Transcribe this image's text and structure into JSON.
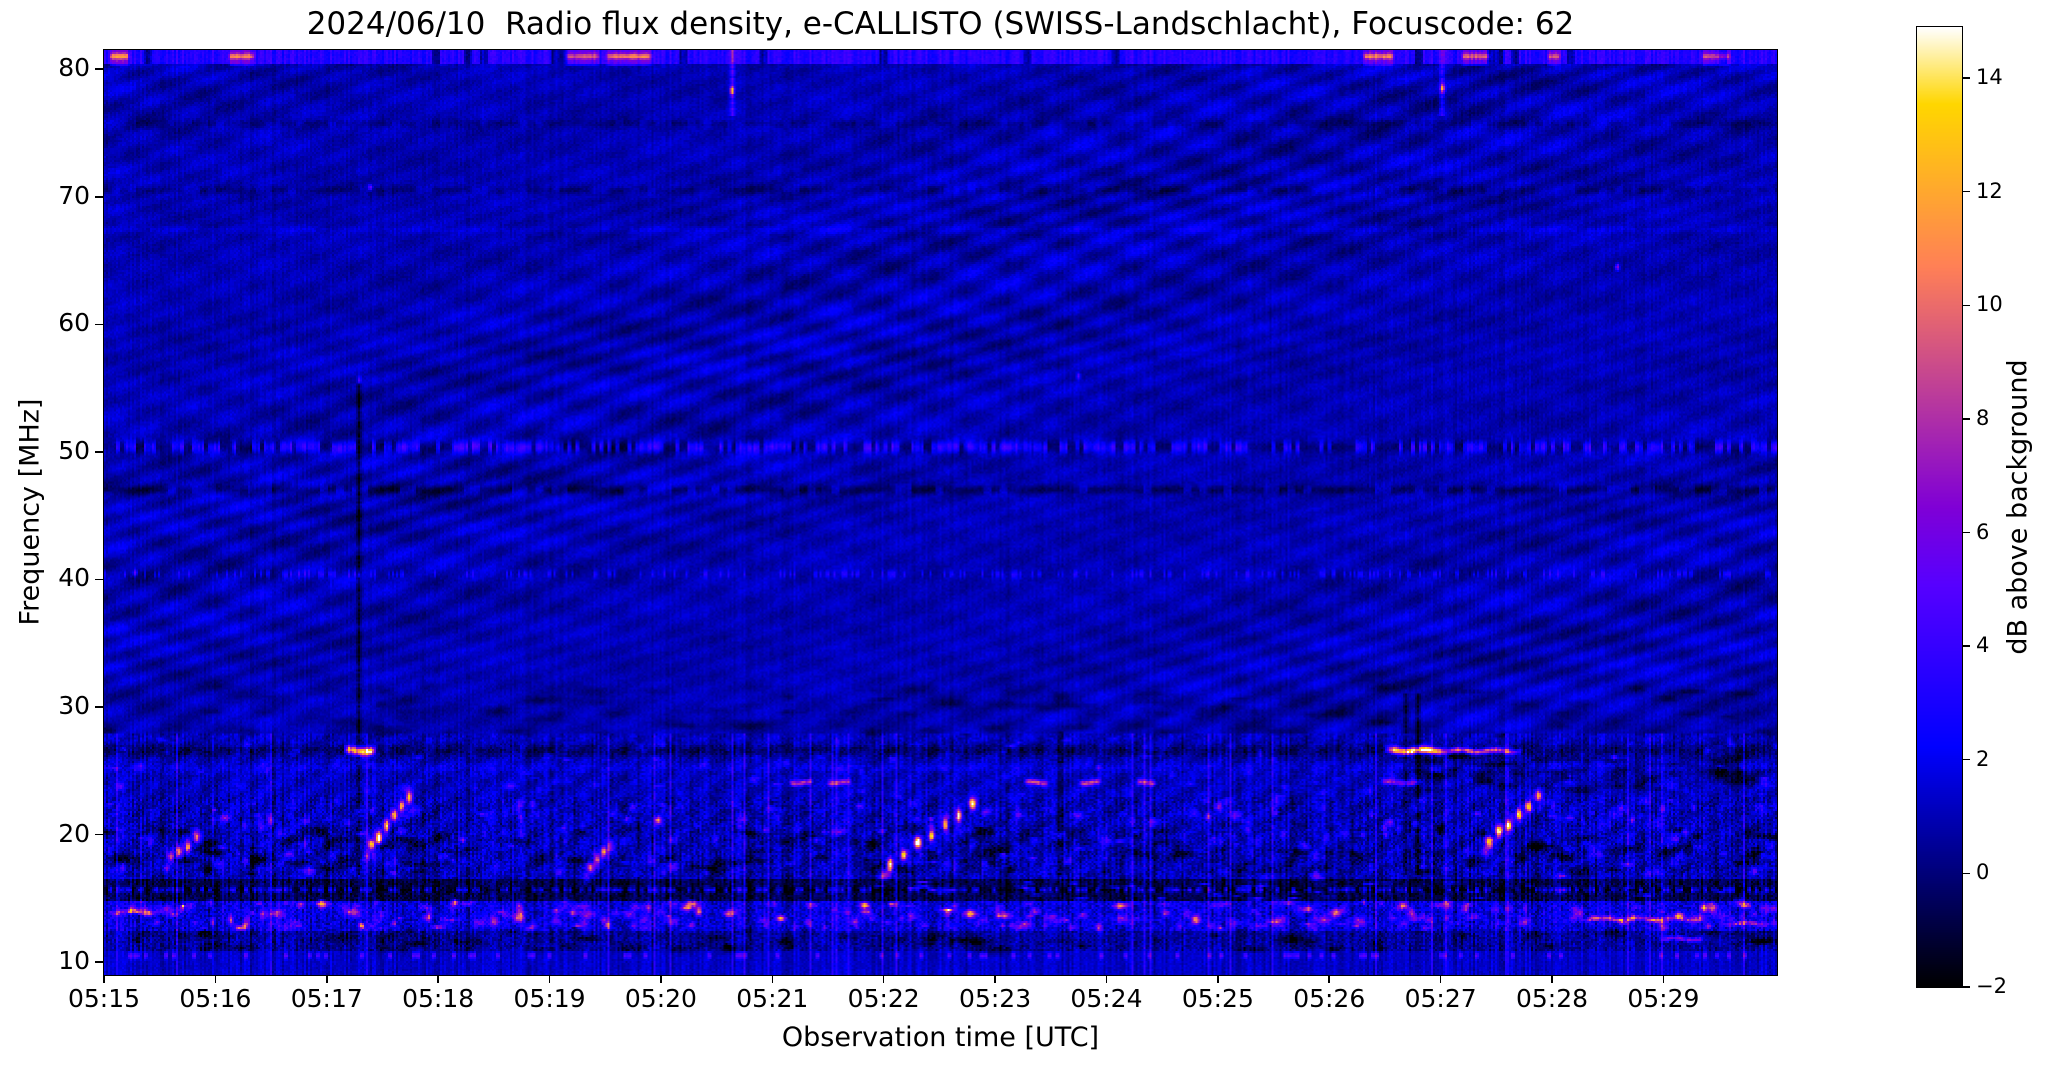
{
  "figure": {
    "background": "#ffffff",
    "text_color": "#000000"
  },
  "chart_data": {
    "type": "heatmap",
    "title": "2024/06/10  Radio flux density, e-CALLISTO (SWISS-Landschlacht), Focuscode: 62",
    "xlabel": "Observation time [UTC]",
    "ylabel": "Frequency [MHz]",
    "colorbar_label": "dB above background",
    "colormap": "gnuplot2",
    "x_start": "05:15",
    "x_end": "05:30",
    "x_span_minutes": 15.02,
    "x_ticks": [
      "05:15",
      "05:16",
      "05:17",
      "05:18",
      "05:19",
      "05:20",
      "05:21",
      "05:22",
      "05:23",
      "05:24",
      "05:25",
      "05:26",
      "05:27",
      "05:28",
      "05:29"
    ],
    "y_range_mhz": [
      9.0,
      81.5
    ],
    "y_ticks_mhz": [
      10,
      20,
      30,
      40,
      50,
      60,
      70,
      80
    ],
    "value_range_db": [
      -2,
      14.9
    ],
    "colorbar_ticks_db": [
      -2,
      0,
      2,
      4,
      6,
      8,
      10,
      12,
      14
    ],
    "background_level_db": 1.0,
    "bands": [
      {
        "f": [
          28.0,
          81.5
        ],
        "base": 0.95,
        "noise": 0.5,
        "stria": 0.32,
        "ripple": 1,
        "diag": 0
      },
      {
        "f": [
          23.0,
          28.0
        ],
        "base": 1.15,
        "noise": 1.0,
        "stria": 0.85,
        "ripple": 0,
        "diag": 1
      },
      {
        "f": [
          16.6,
          23.0
        ],
        "base": 1.05,
        "noise": 1.5,
        "stria": 1.15,
        "ripple": 0,
        "diag": 1
      },
      {
        "f": [
          14.9,
          16.6
        ],
        "base": -0.7,
        "noise": 1.1,
        "stria": 1.3,
        "ripple": 0,
        "diag": 0
      },
      {
        "f": [
          12.6,
          14.9
        ],
        "base": 1.7,
        "noise": 1.7,
        "stria": 1.25,
        "ripple": 0,
        "diag": 0
      },
      {
        "f": [
          11.0,
          12.6
        ],
        "base": 0.7,
        "noise": 1.3,
        "stria": 1.1,
        "ripple": 0,
        "diag": 0
      },
      {
        "f": [
          9.0,
          11.0
        ],
        "base": 1.35,
        "noise": 0.55,
        "stria": 0.8,
        "ripple": 0,
        "diag": 0
      }
    ],
    "rows": [
      {
        "f": 50.45,
        "hw": 0.45,
        "type": "dashed-bright",
        "db": 2.8
      },
      {
        "f": 47.1,
        "hw": 0.35,
        "type": "dashed-dark",
        "db": -1.3
      },
      {
        "f": 70.6,
        "hw": 0.3,
        "type": "dashed-dark",
        "db": -0.8
      },
      {
        "f": 75.8,
        "hw": 0.3,
        "type": "dashed-dark",
        "db": -0.7
      },
      {
        "f": 67.5,
        "hw": 0.25,
        "type": "faint-bright",
        "db": 0.7
      },
      {
        "f": 40.5,
        "hw": 0.3,
        "type": "speckle-bright",
        "db": 0.9
      },
      {
        "f": 26.65,
        "hw": 0.5,
        "type": "dark-lane",
        "db": -1.6
      },
      {
        "f": 25.3,
        "hw": 0.3,
        "type": "faint-bright",
        "db": 0.8
      },
      {
        "f": 15.75,
        "hw": 0.2,
        "type": "dashed-bright",
        "db": 3.2
      },
      {
        "f": 10.6,
        "hw": 0.25,
        "type": "dotted-bright",
        "db": 3.5
      }
    ],
    "top_band": {
      "f": [
        80.55,
        81.5
      ],
      "base_db": 3.4,
      "segments": [
        [
          0.04,
          0.22,
          6.5
        ],
        [
          1.1,
          1.35,
          6.0
        ],
        [
          4.13,
          4.45,
          5.0
        ],
        [
          4.49,
          4.92,
          6.3
        ],
        [
          11.29,
          11.58,
          6.3
        ],
        [
          12.17,
          12.44,
          5.2
        ],
        [
          12.95,
          13.07,
          4.6
        ],
        [
          14.33,
          14.6,
          4.8
        ]
      ]
    },
    "bright_streaks_27mhz": [
      {
        "t": [
          2.15,
          2.43
        ],
        "f": [
          26.3,
          27.0
        ],
        "db": 13.5
      },
      {
        "t": [
          11.5,
          12.05
        ],
        "f": [
          26.35,
          26.95
        ],
        "db": 14.5
      },
      {
        "t": [
          12.0,
          12.72
        ],
        "f": [
          26.4,
          26.85
        ],
        "db": 9.0
      }
    ],
    "magenta_dashes_24mhz": {
      "f": 24.15,
      "hw": 0.22,
      "segments": [
        [
          6.14,
          6.36,
          7.2
        ],
        [
          6.48,
          6.7,
          7.2
        ],
        [
          8.25,
          8.47,
          7.6
        ],
        [
          8.74,
          8.94,
          7.4
        ],
        [
          9.26,
          9.44,
          6.6
        ],
        [
          11.45,
          11.82,
          6.0
        ]
      ]
    },
    "type_iii_bursts": [
      {
        "t0": 0.59,
        "f0": 18.2,
        "t1": 0.82,
        "f1": 19.8,
        "blobs": 4,
        "db": 8.5
      },
      {
        "t0": 2.39,
        "f0": 19.2,
        "t1": 2.73,
        "f1": 23.0,
        "blobs": 6,
        "db": 12.5
      },
      {
        "t0": 4.36,
        "f0": 17.5,
        "t1": 4.54,
        "f1": 19.2,
        "blobs": 4,
        "db": 7.5
      },
      {
        "t0": 7.05,
        "f0": 17.8,
        "t1": 7.79,
        "f1": 22.4,
        "blobs": 7,
        "db": 12.5
      },
      {
        "t0": 12.43,
        "f0": 19.5,
        "t1": 12.87,
        "f1": 23.0,
        "blobs": 6,
        "db": 12.5
      }
    ],
    "bright_lanes_low": [
      [
        13.2,
        14.35,
        13.45,
        7.0
      ],
      [
        13.95,
        14.35,
        11.9,
        7.0
      ],
      [
        14.5,
        14.95,
        13.1,
        6.0
      ],
      [
        0.03,
        0.55,
        14.0,
        6.0
      ]
    ],
    "vertical_streaks": [
      {
        "t": 2.28,
        "f": [
          17.0,
          55.8
        ],
        "db": -2.2,
        "sig": 0.8
      },
      {
        "t": 8.57,
        "f": [
          17.0,
          28.0
        ],
        "db": -1.8,
        "sig": 0.8
      },
      {
        "t": 11.69,
        "f": [
          17.0,
          31.0
        ],
        "db": -2.2,
        "sig": 0.8
      },
      {
        "t": 11.79,
        "f": [
          17.0,
          31.0
        ],
        "db": -2.0,
        "sig": 0.8
      },
      {
        "t": 5.63,
        "f": [
          76.5,
          81.5
        ],
        "db": 3.5,
        "sig": 0.9,
        "core_f": 78.4,
        "core_db": 9.5
      },
      {
        "t": 12.01,
        "f": [
          76.5,
          81.5
        ],
        "db": 3.0,
        "sig": 0.9,
        "core_f": 78.6,
        "core_db": 8.5
      }
    ],
    "dots": [
      {
        "t": 2.28,
        "f": 55.7,
        "db": 6.0
      },
      {
        "t": 2.38,
        "f": 70.8,
        "db": 5.5
      },
      {
        "t": 8.74,
        "f": 56.0,
        "db": 4.5
      },
      {
        "t": 13.58,
        "f": 64.6,
        "db": 6.5
      },
      {
        "t": 0.27,
        "f": 40.6,
        "db": 5.0
      },
      {
        "t": 9.9,
        "f": 21.5,
        "db": 7.0
      }
    ]
  }
}
